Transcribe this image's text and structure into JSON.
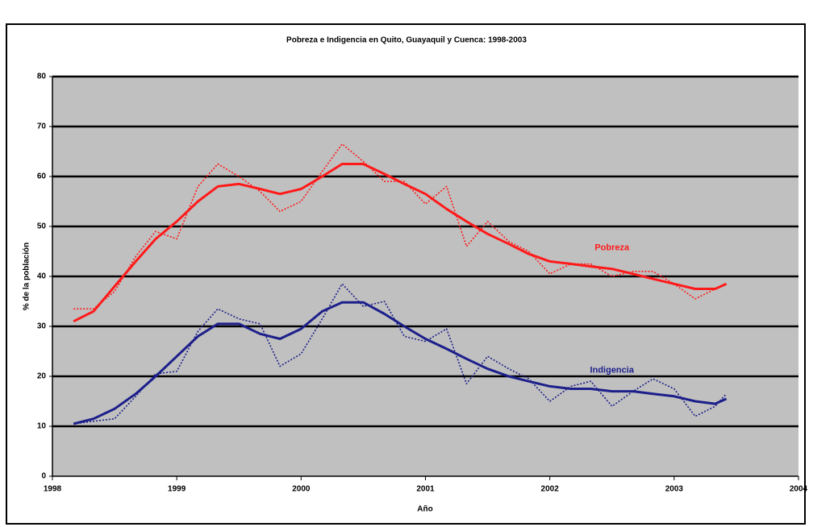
{
  "chart_data": {
    "type": "line",
    "title": "Pobreza e Indigencia en Quito, Guayaquil y Cuenca: 1998-2003",
    "x_label": "Año",
    "y_label": "% de la población",
    "x": [
      1998.17,
      1998.33,
      1998.5,
      1998.67,
      1998.83,
      1999.0,
      1999.17,
      1999.33,
      1999.5,
      1999.67,
      1999.83,
      2000.0,
      2000.17,
      2000.33,
      2000.5,
      2000.67,
      2000.83,
      2001.0,
      2001.17,
      2001.33,
      2001.5,
      2001.67,
      2001.83,
      2002.0,
      2002.17,
      2002.33,
      2002.5,
      2002.67,
      2002.83,
      2003.0,
      2003.17,
      2003.33,
      2003.42
    ],
    "series": [
      {
        "name": "Pobreza",
        "color": "#ff1a1a",
        "style": "solid",
        "values": [
          31,
          33,
          38,
          43,
          47.5,
          51,
          55,
          58,
          58.5,
          57.5,
          56.5,
          57.5,
          60,
          62.5,
          62.5,
          60.5,
          58.5,
          56.5,
          53.5,
          51,
          48.5,
          46.5,
          44.5,
          43,
          42.5,
          42,
          41.5,
          40.5,
          39.5,
          38.5,
          37.5,
          37.5,
          38.5
        ]
      },
      {
        "color": "#ff1a1a",
        "style": "dotted",
        "values": [
          33.5,
          33.5,
          37,
          44,
          49,
          47.5,
          58,
          62.5,
          60,
          57,
          53,
          55,
          61,
          66.5,
          63,
          59,
          59,
          54.5,
          58,
          46,
          51,
          47,
          45,
          40.5,
          42.5,
          42.5,
          40,
          41,
          41,
          38.5,
          35.5,
          37.5,
          38.5
        ]
      },
      {
        "name": "Indigencia",
        "color": "#1c1f8a",
        "style": "solid",
        "values": [
          10.5,
          11.5,
          13.5,
          16.5,
          20,
          24,
          28,
          30.5,
          30.5,
          28.5,
          27.5,
          29.5,
          33,
          34.8,
          34.8,
          32.5,
          30,
          27.5,
          25.5,
          23.5,
          21.5,
          20,
          19,
          18,
          17.5,
          17.5,
          17,
          17,
          16.5,
          16,
          15,
          14.5,
          15.5
        ]
      },
      {
        "color": "#1c1f8a",
        "style": "dotted",
        "values": [
          10.5,
          11,
          11.5,
          16,
          20.5,
          21,
          29,
          33.5,
          31.5,
          30.5,
          22,
          24.5,
          31.5,
          38.5,
          34,
          35,
          28,
          27,
          29.5,
          18.5,
          24,
          21.5,
          19.5,
          15,
          18,
          19,
          14,
          17,
          19.5,
          17.5,
          12,
          14,
          16.5
        ]
      }
    ],
    "xlim": [
      1998,
      2004
    ],
    "xticks": [
      1998,
      1999,
      2000,
      2001,
      2002,
      2003,
      2004
    ],
    "ylim": [
      0,
      80
    ],
    "yticks": [
      0,
      10,
      20,
      30,
      40,
      50,
      60,
      70,
      80
    ],
    "grid": true
  }
}
